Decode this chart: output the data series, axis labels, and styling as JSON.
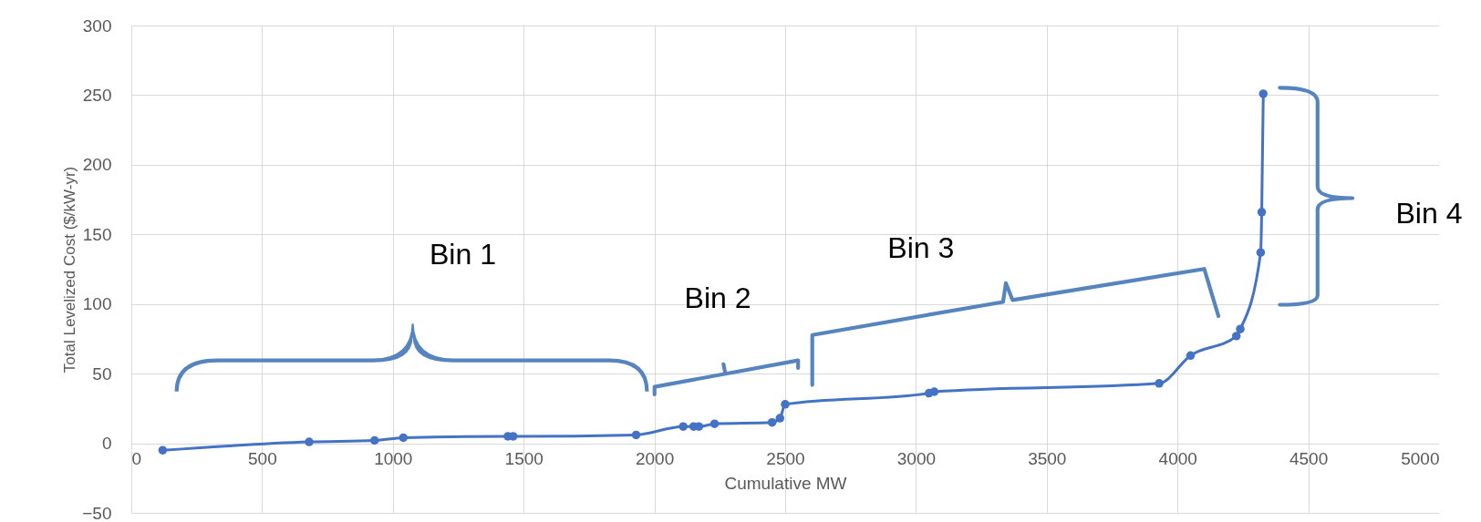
{
  "chart_data": {
    "type": "line",
    "xlabel": "Cumulative MW",
    "ylabel": "Total Levelized Cost ($/kW-yr)",
    "x": [
      120,
      680,
      930,
      1040,
      1440,
      1460,
      1930,
      2110,
      2150,
      2170,
      2230,
      2450,
      2480,
      2500,
      3050,
      3070,
      3930,
      4050,
      4225,
      4240,
      4318,
      4322,
      4328
    ],
    "series": [
      {
        "color": "#4472c4",
        "values": [
          -5,
          1,
          2,
          4,
          5,
          5,
          6,
          12,
          12,
          12,
          14,
          15,
          18,
          28,
          36,
          37,
          43,
          63,
          77,
          82,
          137,
          166,
          251
        ]
      }
    ],
    "xlim": [
      0,
      5000
    ],
    "xticks": [
      0,
      500,
      1000,
      1500,
      2000,
      2500,
      3000,
      3500,
      4000,
      4500,
      5000
    ],
    "ylim": [
      -50,
      300
    ],
    "yticks": [
      -50,
      0,
      50,
      100,
      150,
      200,
      250,
      300
    ],
    "grid": true,
    "marker": "circle",
    "legend": false,
    "annotations": [
      "Bin 1",
      "Bin 2",
      "Bin 3",
      "Bin 4"
    ]
  }
}
